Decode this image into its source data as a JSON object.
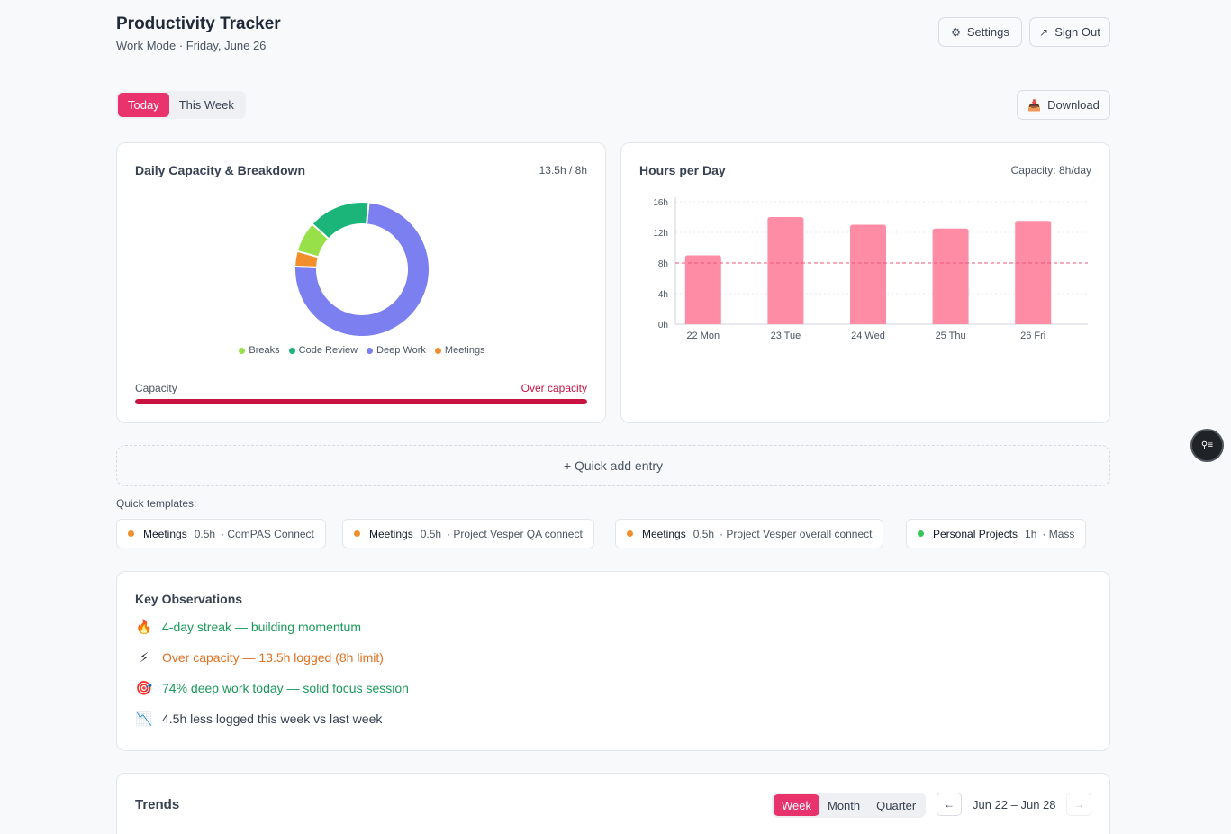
{
  "header": {
    "title": "Productivity Tracker",
    "subtitle": "Work Mode · Friday, June 26",
    "settings_label": "Settings",
    "signout_label": "Sign Out"
  },
  "view_toggle": {
    "options": [
      "Today",
      "This Week"
    ],
    "active": "Today"
  },
  "download_label": "Download",
  "capacity_card": {
    "title": "Daily Capacity & Breakdown",
    "meta": "13.5h / 8h",
    "capacity_label": "Capacity",
    "capacity_status": "Over capacity",
    "capacity_fill_fraction": 1.0
  },
  "bars_card": {
    "title": "Hours per Day",
    "meta": "Capacity: 8h/day"
  },
  "chart_data": [
    {
      "type": "pie",
      "variant": "donut",
      "categories": [
        "Deep Work",
        "Meetings",
        "Breaks",
        "Code Review"
      ],
      "values": [
        10.0,
        0.5,
        1.0,
        2.0
      ],
      "colors": [
        "#7b7ff0",
        "#f28f2c",
        "#97e04a",
        "#1bb57a"
      ],
      "legend": [
        "Breaks",
        "Code Review",
        "Deep Work",
        "Meetings"
      ],
      "legend_colors": [
        "#97e04a",
        "#1bb57a",
        "#7b7ff0",
        "#f28f2c"
      ]
    },
    {
      "type": "bar",
      "categories": [
        "22 Mon",
        "23 Tue",
        "24 Wed",
        "25 Thu",
        "26 Fri"
      ],
      "values": [
        9.0,
        14.0,
        13.0,
        12.5,
        13.5
      ],
      "ylim": [
        0,
        16
      ],
      "yticks": [
        0,
        4,
        8,
        12,
        16
      ],
      "ytick_labels": [
        "0h",
        "4h",
        "8h",
        "12h",
        "16h"
      ],
      "reference_line": 8,
      "bar_color": "#ff8ca5",
      "reference_color": "#e8597a"
    }
  ],
  "quick_add_label": "+ Quick add entry",
  "templates_label": "Quick templates:",
  "templates": [
    {
      "category": "Meetings",
      "duration": "0.5h",
      "project": "· ComPAS Connect",
      "color": "#f28f2c"
    },
    {
      "category": "Meetings",
      "duration": "0.5h",
      "project": "· Project Vesper QA connect",
      "color": "#f28f2c"
    },
    {
      "category": "Meetings",
      "duration": "0.5h",
      "project": "· Project Vesper overall connect",
      "color": "#f28f2c"
    },
    {
      "category": "Personal Projects",
      "duration": "1h",
      "project": "· Mass",
      "color": "#34c759"
    }
  ],
  "observations": {
    "title": "Key Observations",
    "items": [
      {
        "icon": "🔥",
        "text": "4-day streak — building momentum",
        "color": "#1a9a5a"
      },
      {
        "icon": "⚡",
        "text": "Over capacity — 13.5h logged (8h limit)",
        "color": "#e07020"
      },
      {
        "icon": "🎯",
        "text": "74% deep work today — solid focus session",
        "color": "#1a9a5a"
      },
      {
        "icon": "📉",
        "text": "4.5h less logged this week vs last week",
        "color": "#374151"
      }
    ]
  },
  "trends": {
    "title": "Trends",
    "ranges": [
      "Week",
      "Month",
      "Quarter"
    ],
    "active_range": "Week",
    "range_label": "Jun 22 – Jun 28",
    "prev_icon": "←",
    "next_icon": "→"
  },
  "icons": {
    "settings": "⚙",
    "signout": "↗",
    "download": "📥",
    "fab": "⚲≡"
  }
}
